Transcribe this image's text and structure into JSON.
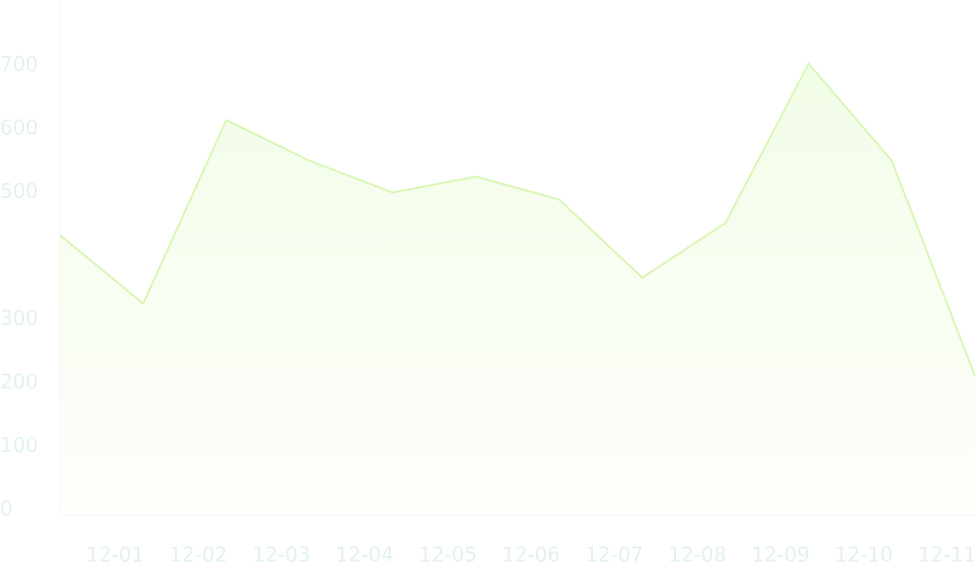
{
  "chart_data": {
    "type": "area",
    "categories": [
      null,
      "12-01",
      "12-02",
      "12-03",
      "12-04",
      "12-05",
      "12-06",
      "12-07",
      "12-08",
      "12-09",
      "12-10",
      "12-11"
    ],
    "series": [
      {
        "color": "#d8f7b4",
        "values": [
          433,
          325,
          614,
          550,
          500,
          525,
          489,
          366,
          452,
          703,
          550,
          211
        ]
      }
    ],
    "ylim": [
      0,
      800
    ],
    "yticks": [
      0,
      100,
      200,
      300,
      500,
      600,
      700
    ]
  }
}
